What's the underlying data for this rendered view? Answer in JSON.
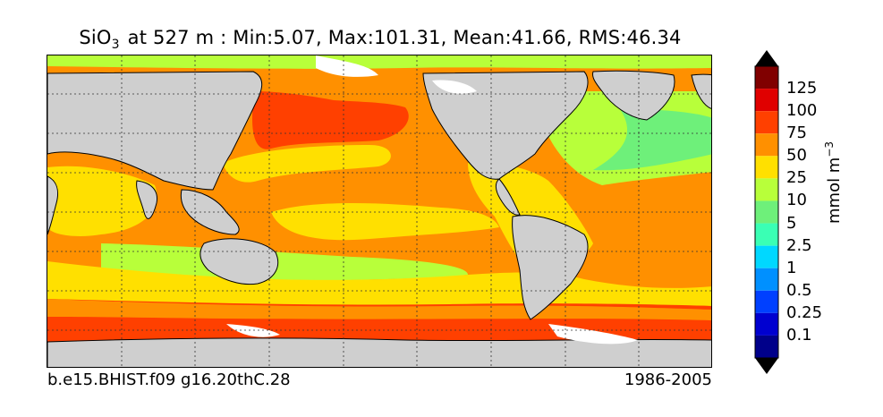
{
  "title": {
    "variable": "SiO",
    "subscript": "3",
    "rest": " at 527 m : Min:5.07, Max:101.31, Mean:41.66, RMS:46.34"
  },
  "footer": {
    "case": "b.e15.BHIST.f09 g16.20thC.28",
    "years": "1986-2005"
  },
  "colorbar": {
    "units": "mmol m",
    "units_exp": "−3",
    "levels": [
      {
        "label": "125",
        "color": "#800000"
      },
      {
        "label": "100",
        "color": "#e00000"
      },
      {
        "label": "75",
        "color": "#ff4000"
      },
      {
        "label": "50",
        "color": "#ff9000"
      },
      {
        "label": "25",
        "color": "#ffe000"
      },
      {
        "label": "10",
        "color": "#b8ff3a"
      },
      {
        "label": "5",
        "color": "#6ef07a"
      },
      {
        "label": "2.5",
        "color": "#3affb4"
      },
      {
        "label": "1",
        "color": "#00d8ff"
      },
      {
        "label": "0.5",
        "color": "#0090ff"
      },
      {
        "label": "0.25",
        "color": "#0040ff"
      },
      {
        "label": "0.1",
        "color": "#0000d0"
      }
    ],
    "under_color": "#00008a",
    "over_color": "#000000"
  },
  "map": {
    "land_color": "#cfcfcf",
    "missing_color": "#ffffff",
    "grid": "on"
  }
}
